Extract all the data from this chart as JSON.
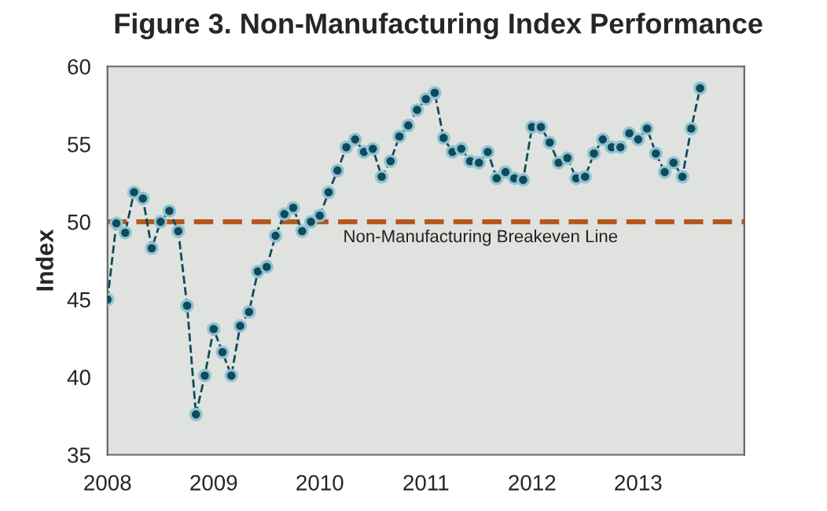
{
  "chart_data": {
    "type": "line",
    "title": "Figure 3. Non-Manufacturing Index Performance",
    "ylabel": "Index",
    "x": [
      2008.0,
      2008.0833,
      2008.1667,
      2008.25,
      2008.3333,
      2008.4167,
      2008.5,
      2008.5833,
      2008.6667,
      2008.75,
      2008.8333,
      2008.9167,
      2009.0,
      2009.0833,
      2009.1667,
      2009.25,
      2009.3333,
      2009.4167,
      2009.5,
      2009.5833,
      2009.6667,
      2009.75,
      2009.8333,
      2009.9167,
      2010.0,
      2010.0833,
      2010.1667,
      2010.25,
      2010.3333,
      2010.4167,
      2010.5,
      2010.5833,
      2010.6667,
      2010.75,
      2010.8333,
      2010.9167,
      2011.0,
      2011.0833,
      2011.1667,
      2011.25,
      2011.3333,
      2011.4167,
      2011.5,
      2011.5833,
      2011.6667,
      2011.75,
      2011.8333,
      2011.9167,
      2012.0,
      2012.0833,
      2012.1667,
      2012.25,
      2012.3333,
      2012.4167,
      2012.5,
      2012.5833,
      2012.6667,
      2012.75,
      2012.8333,
      2012.9167,
      2013.0,
      2013.0833,
      2013.1667,
      2013.25,
      2013.3333,
      2013.4167,
      2013.5,
      2013.5833
    ],
    "series": [
      {
        "color": "#0f4a5a",
        "values": [
          45.0,
          49.9,
          49.3,
          51.9,
          51.5,
          48.3,
          50.0,
          50.7,
          49.4,
          44.6,
          37.6,
          40.1,
          43.1,
          41.6,
          40.1,
          43.3,
          44.2,
          46.8,
          47.1,
          49.1,
          50.5,
          50.9,
          49.4,
          50.0,
          50.4,
          51.9,
          53.3,
          54.8,
          55.3,
          54.5,
          54.7,
          52.9,
          53.9,
          55.5,
          56.2,
          57.2,
          57.9,
          58.3,
          55.4,
          54.5,
          54.7,
          53.9,
          53.8,
          54.5,
          52.8,
          53.2,
          52.8,
          52.7,
          56.1,
          56.1,
          55.1,
          53.8,
          54.1,
          52.8,
          52.9,
          54.4,
          55.3,
          54.8,
          54.8,
          55.7,
          55.3,
          56.0,
          54.4,
          53.2,
          53.8,
          52.9,
          56.0,
          58.6
        ]
      }
    ],
    "xlim": [
      2008,
      2014
    ],
    "xticks": [
      2008,
      2009,
      2010,
      2011,
      2012,
      2013,
      {
        "value": 2014,
        "label": null
      }
    ],
    "ylim": [
      35,
      60
    ],
    "yticks": [
      35,
      40,
      45,
      50,
      55,
      60
    ],
    "ref_lines": [
      {
        "axis": "y",
        "value": 50,
        "label": "Non-Manufacturing Breakeven Line",
        "color": "#b5561b",
        "line_style": "dashed"
      }
    ],
    "marker": "circle",
    "line_style": "dashed",
    "grid": false
  }
}
